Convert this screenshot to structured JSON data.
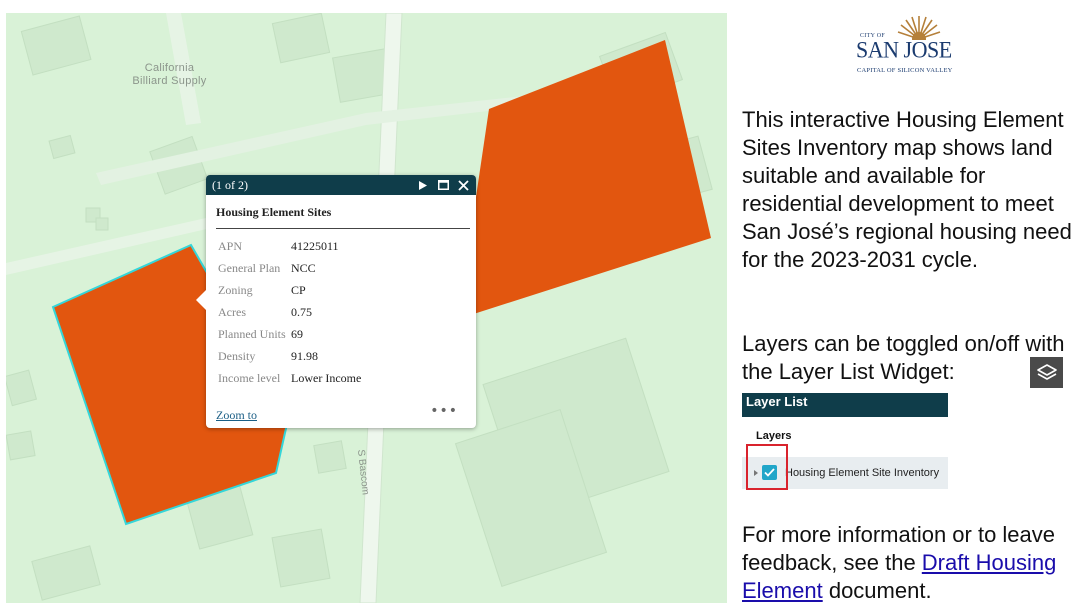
{
  "colors": {
    "map_bg": "#d9f2d7",
    "parcel_fill": "#e2560f",
    "parcel_selected_outline": "#34d6d9",
    "header_bg": "#0f3d4a",
    "link": "#1a0dab"
  },
  "map": {
    "place_label": "California\nBilliard Supply",
    "street_label": "S Bascom"
  },
  "popup": {
    "counter": "(1 of 2)",
    "title": "Housing Element Sites",
    "fields": [
      {
        "label": "APN",
        "value": "41225011"
      },
      {
        "label": "General Plan",
        "value": "NCC"
      },
      {
        "label": "Zoning",
        "value": "CP"
      },
      {
        "label": "Acres",
        "value": "0.75"
      },
      {
        "label": "Planned Units",
        "value": "69"
      },
      {
        "label": "Density",
        "value": "91.98"
      },
      {
        "label": "Income level",
        "value": "Lower Income"
      }
    ],
    "zoom_label": "Zoom to",
    "more_label": "•••",
    "icons": {
      "next": "play-next-icon",
      "maximize": "maximize-icon",
      "close": "close-icon"
    }
  },
  "panel": {
    "logo": {
      "city_of": "CITY OF",
      "name": "SAN JOSE",
      "tagline": "CAPITAL OF SILICON VALLEY"
    },
    "intro": "This interactive Housing Element Sites Inventory map shows land suitable and available for residential development to meet San José’s regional housing need for the 2023-2031 cycle.",
    "layers_text": "Layers can be toggled on/off with the Layer List Widget:",
    "layer_list": {
      "title": "Layer List",
      "section": "Layers",
      "item": "Housing Element Site Inventory"
    },
    "more_info_prefix": "For more information or to leave feedback, see the ",
    "more_info_link": "Draft Housing Element",
    "more_info_suffix": " document."
  }
}
